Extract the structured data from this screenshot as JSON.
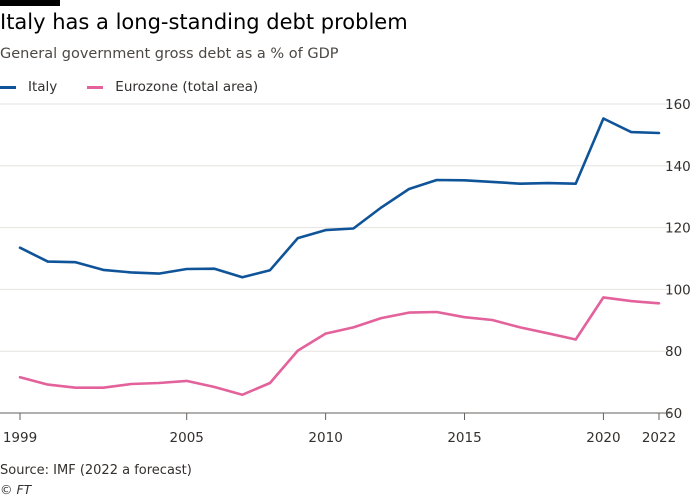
{
  "header": {
    "title": "Italy has a long-standing debt problem",
    "subtitle": "General government gross debt as a % of GDP"
  },
  "footer": {
    "source": "Source: IMF (2022 a forecast)",
    "credit": "© FT"
  },
  "colors": {
    "italy": "#0f5499",
    "eurozone": "#e3629b",
    "grid": "#e6e3df",
    "axis": "#66605c",
    "text": "#33302e"
  },
  "chart_data": {
    "type": "line",
    "title": "Italy has a long-standing debt problem",
    "subtitle": "General government gross debt as a % of GDP",
    "xlabel": "",
    "ylabel": "",
    "x": [
      1999,
      2000,
      2001,
      2002,
      2003,
      2004,
      2005,
      2006,
      2007,
      2008,
      2009,
      2010,
      2011,
      2012,
      2013,
      2014,
      2015,
      2016,
      2017,
      2018,
      2019,
      2020,
      2021,
      2022
    ],
    "x_tick_labels": [
      "1999",
      "2005",
      "2010",
      "2015",
      "2020",
      "2022"
    ],
    "x_ticks": [
      1999,
      2005,
      2010,
      2015,
      2020,
      2022
    ],
    "y_tick_labels": [
      "60",
      "80",
      "100",
      "120",
      "140",
      "160"
    ],
    "y_ticks": [
      60,
      80,
      100,
      120,
      140,
      160
    ],
    "xlim": [
      1999,
      2022
    ],
    "ylim": [
      60,
      160
    ],
    "grid": "horizontal",
    "y_axis_position": "right",
    "legend_position": "top-left",
    "series": [
      {
        "name": "Italy",
        "values": [
          113.5,
          109.0,
          108.8,
          106.3,
          105.5,
          105.1,
          106.6,
          106.7,
          103.9,
          106.2,
          116.6,
          119.2,
          119.7,
          126.5,
          132.5,
          135.4,
          135.3,
          134.8,
          134.2,
          134.4,
          134.2,
          155.3,
          150.9,
          150.6
        ]
      },
      {
        "name": "Eurozone (total area)",
        "values": [
          71.6,
          69.2,
          68.2,
          68.2,
          69.4,
          69.7,
          70.4,
          68.4,
          65.9,
          69.7,
          80.2,
          85.7,
          87.7,
          90.7,
          92.5,
          92.7,
          91.0,
          90.1,
          87.7,
          85.8,
          83.8,
          97.4,
          96.2,
          95.5
        ]
      }
    ]
  }
}
